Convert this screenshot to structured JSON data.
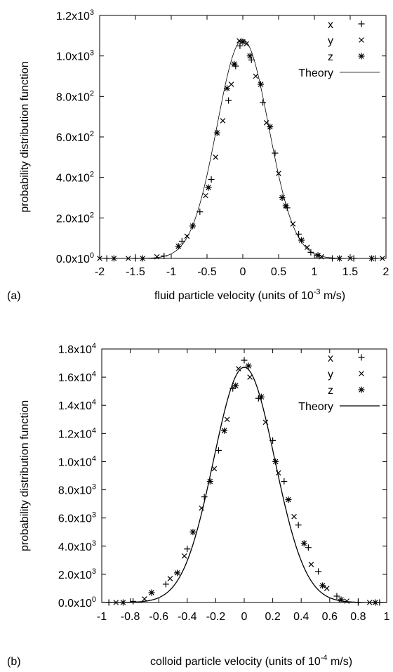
{
  "chart_data": [
    {
      "type": "scatter",
      "panel_label": "(a)",
      "xlabel": "fluid particle velocity (units of 10",
      "xlabel_exp": "-3",
      "xlabel_tail": " m/s)",
      "ylabel": "probability distribution function",
      "xlim": [
        -2,
        2
      ],
      "ylim": [
        0,
        1200
      ],
      "x_ticks": [
        "-2",
        "-1.5",
        "-1",
        "-0.5",
        "0",
        "0.5",
        "1",
        "1.5",
        "2"
      ],
      "y_ticks": [
        {
          "v": 0,
          "m": "0.0x10",
          "e": "0"
        },
        {
          "v": 200,
          "m": "2.0x10",
          "e": "2"
        },
        {
          "v": 400,
          "m": "4.0x10",
          "e": "2"
        },
        {
          "v": 600,
          "m": "6.0x10",
          "e": "2"
        },
        {
          "v": 800,
          "m": "8.0x10",
          "e": "2"
        },
        {
          "v": 1000,
          "m": "1.0x10",
          "e": "3"
        },
        {
          "v": 1200,
          "m": "1.2x10",
          "e": "3"
        }
      ],
      "grid": false,
      "legend_position": "top-right",
      "series": [
        {
          "name": "x",
          "marker": "plus",
          "points": [
            [
              -1.9,
              0
            ],
            [
              -1.5,
              0
            ],
            [
              -1.1,
              12
            ],
            [
              -0.85,
              85
            ],
            [
              -0.6,
              230
            ],
            [
              -0.44,
              390
            ],
            [
              -0.2,
              780
            ],
            [
              -0.1,
              950
            ],
            [
              -0.04,
              1050
            ],
            [
              0.12,
              980
            ],
            [
              0.28,
              770
            ],
            [
              0.45,
              520
            ],
            [
              0.62,
              250
            ],
            [
              0.78,
              120
            ],
            [
              0.95,
              30
            ],
            [
              1.25,
              0
            ],
            [
              1.55,
              0
            ],
            [
              1.85,
              0
            ]
          ]
        },
        {
          "name": "y",
          "marker": "cross",
          "points": [
            [
              -2.0,
              0
            ],
            [
              -1.6,
              0
            ],
            [
              -1.2,
              8
            ],
            [
              -0.78,
              110
            ],
            [
              -0.52,
              310
            ],
            [
              -0.38,
              500
            ],
            [
              -0.28,
              680
            ],
            [
              -0.16,
              860
            ],
            [
              -0.05,
              1075
            ],
            [
              0.05,
              1060
            ],
            [
              0.18,
              900
            ],
            [
              0.33,
              670
            ],
            [
              0.5,
              420
            ],
            [
              0.7,
              170
            ],
            [
              0.9,
              55
            ],
            [
              1.1,
              8
            ],
            [
              1.5,
              0
            ],
            [
              1.95,
              0
            ]
          ]
        },
        {
          "name": "z",
          "marker": "star",
          "points": [
            [
              -1.8,
              0
            ],
            [
              -1.4,
              0
            ],
            [
              -0.9,
              60
            ],
            [
              -0.7,
              160
            ],
            [
              -0.48,
              350
            ],
            [
              -0.36,
              620
            ],
            [
              -0.22,
              840
            ],
            [
              -0.12,
              960
            ],
            [
              0.0,
              1070
            ],
            [
              0.1,
              1000
            ],
            [
              0.25,
              860
            ],
            [
              0.38,
              650
            ],
            [
              0.55,
              300
            ],
            [
              0.6,
              260
            ],
            [
              0.82,
              90
            ],
            [
              1.05,
              15
            ],
            [
              1.35,
              0
            ],
            [
              1.8,
              0
            ]
          ]
        }
      ],
      "theory": {
        "name": "Theory",
        "amplitude": 1080,
        "sigma": 0.36
      }
    },
    {
      "type": "scatter",
      "panel_label": "(b)",
      "xlabel": "colloid particle velocity (units of 10",
      "xlabel_exp": "-4",
      "xlabel_tail": " m/s)",
      "ylabel": "probability distribution function",
      "xlim": [
        -1,
        1
      ],
      "ylim": [
        0,
        18000
      ],
      "x_ticks": [
        "-1",
        "-0.8",
        "-0.6",
        "-0.4",
        "-0.2",
        "0",
        "0.2",
        "0.4",
        "0.6",
        "0.8",
        "1"
      ],
      "y_ticks": [
        {
          "v": 0,
          "m": "0.0x10",
          "e": "0"
        },
        {
          "v": 2000,
          "m": "2.0x10",
          "e": "3"
        },
        {
          "v": 4000,
          "m": "4.0x10",
          "e": "3"
        },
        {
          "v": 6000,
          "m": "6.0x10",
          "e": "3"
        },
        {
          "v": 8000,
          "m": "8.0x10",
          "e": "3"
        },
        {
          "v": 10000,
          "m": "1.0x10",
          "e": "4"
        },
        {
          "v": 12000,
          "m": "1.2x10",
          "e": "4"
        },
        {
          "v": 14000,
          "m": "1.4x10",
          "e": "4"
        },
        {
          "v": 16000,
          "m": "1.6x10",
          "e": "4"
        },
        {
          "v": 18000,
          "m": "1.8x10",
          "e": "4"
        }
      ],
      "grid": false,
      "legend_position": "top-right",
      "series": [
        {
          "name": "x",
          "marker": "plus",
          "points": [
            [
              -0.95,
              0
            ],
            [
              -0.78,
              80
            ],
            [
              -0.55,
              1300
            ],
            [
              -0.4,
              3800
            ],
            [
              -0.28,
              7500
            ],
            [
              -0.18,
              10800
            ],
            [
              -0.08,
              15200
            ],
            [
              0.0,
              17200
            ],
            [
              0.1,
              14500
            ],
            [
              0.2,
              11500
            ],
            [
              0.28,
              8600
            ],
            [
              0.38,
              5500
            ],
            [
              0.45,
              3900
            ],
            [
              0.52,
              2200
            ],
            [
              0.65,
              450
            ],
            [
              0.8,
              0
            ],
            [
              0.95,
              0
            ]
          ]
        },
        {
          "name": "y",
          "marker": "cross",
          "points": [
            [
              -0.9,
              0
            ],
            [
              -0.7,
              250
            ],
            [
              -0.52,
              1700
            ],
            [
              -0.42,
              3300
            ],
            [
              -0.3,
              6700
            ],
            [
              -0.21,
              9500
            ],
            [
              -0.12,
              13000
            ],
            [
              -0.04,
              16600
            ],
            [
              0.04,
              16000
            ],
            [
              0.15,
              12800
            ],
            [
              0.24,
              9200
            ],
            [
              0.35,
              6100
            ],
            [
              0.47,
              2700
            ],
            [
              0.58,
              1000
            ],
            [
              0.72,
              100
            ],
            [
              0.88,
              0
            ]
          ]
        },
        {
          "name": "z",
          "marker": "star",
          "points": [
            [
              -0.85,
              0
            ],
            [
              -0.65,
              700
            ],
            [
              -0.47,
              2100
            ],
            [
              -0.36,
              5000
            ],
            [
              -0.24,
              8600
            ],
            [
              -0.14,
              12200
            ],
            [
              -0.06,
              15400
            ],
            [
              0.03,
              16800
            ],
            [
              0.12,
              14600
            ],
            [
              0.22,
              10000
            ],
            [
              0.31,
              7300
            ],
            [
              0.42,
              4200
            ],
            [
              0.55,
              1200
            ],
            [
              0.68,
              200
            ],
            [
              0.92,
              0
            ]
          ]
        }
      ],
      "theory": {
        "name": "Theory",
        "amplitude": 16700,
        "sigma": 0.215
      }
    }
  ]
}
